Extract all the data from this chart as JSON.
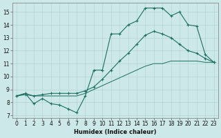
{
  "xlabel": "Humidex (Indice chaleur)",
  "background_color": "#cce8e8",
  "grid_color": "#b8d8d8",
  "line_color": "#1a6e60",
  "xlim": [
    -0.5,
    23.5
  ],
  "ylim": [
    6.8,
    15.7
  ],
  "yticks": [
    7,
    8,
    9,
    10,
    11,
    12,
    13,
    14,
    15
  ],
  "xticks": [
    0,
    1,
    2,
    3,
    4,
    5,
    6,
    7,
    8,
    9,
    10,
    11,
    12,
    13,
    14,
    15,
    16,
    17,
    18,
    19,
    20,
    21,
    22,
    23
  ],
  "line1_x": [
    0,
    1,
    2,
    3,
    4,
    5,
    6,
    7,
    8,
    9,
    10,
    11,
    12,
    13,
    14,
    15,
    16,
    17,
    18,
    19,
    20,
    21,
    22,
    23
  ],
  "line1_y": [
    8.5,
    8.7,
    7.9,
    8.3,
    7.9,
    7.8,
    7.5,
    7.2,
    8.5,
    10.5,
    10.5,
    13.3,
    13.3,
    14.0,
    14.3,
    15.3,
    15.3,
    15.3,
    14.7,
    15.0,
    14.0,
    13.9,
    11.7,
    11.1
  ],
  "line2_x": [
    0,
    1,
    2,
    3,
    4,
    5,
    6,
    7,
    8,
    9,
    10,
    11,
    12,
    13,
    14,
    15,
    16,
    17,
    18,
    19,
    20,
    21,
    22,
    23
  ],
  "line2_y": [
    8.5,
    8.7,
    8.5,
    8.5,
    8.5,
    8.5,
    8.5,
    8.5,
    8.7,
    9.0,
    9.3,
    9.6,
    9.9,
    10.2,
    10.5,
    10.8,
    11.0,
    11.0,
    11.2,
    11.2,
    11.2,
    11.2,
    11.1,
    11.1
  ],
  "line3_x": [
    0,
    1,
    2,
    3,
    4,
    5,
    6,
    7,
    8,
    9,
    10,
    11,
    12,
    13,
    14,
    15,
    16,
    17,
    18,
    19,
    20,
    21,
    22,
    23
  ],
  "line3_y": [
    8.5,
    8.6,
    8.5,
    8.6,
    8.7,
    8.7,
    8.7,
    8.7,
    8.9,
    9.2,
    9.8,
    10.5,
    11.2,
    11.8,
    12.5,
    13.2,
    13.5,
    13.3,
    13.0,
    12.5,
    12.0,
    11.8,
    11.4,
    11.1
  ]
}
